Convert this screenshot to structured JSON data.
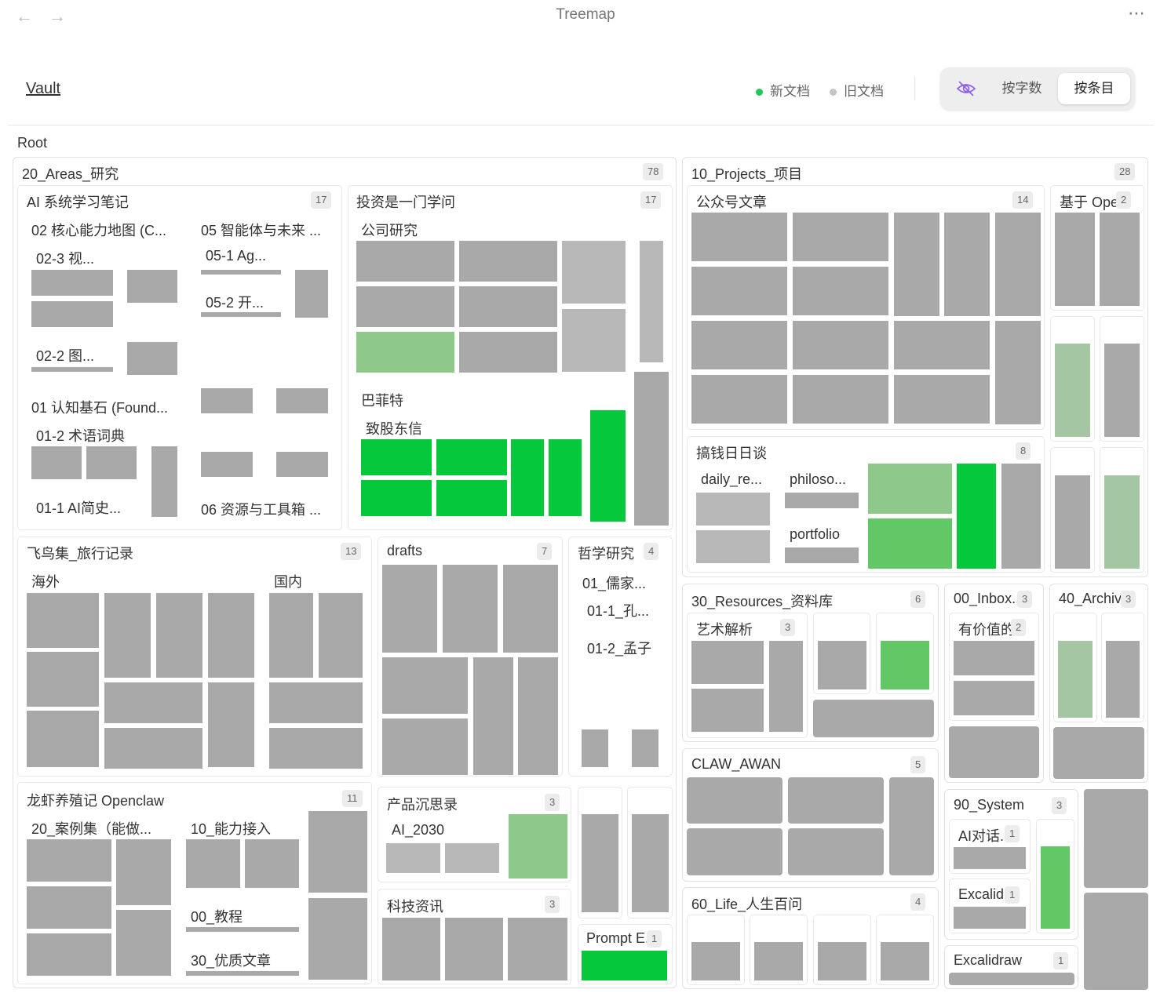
{
  "header": {
    "title": "Treemap",
    "back_icon": "arrow-left-icon",
    "forward_icon": "arrow-right-icon",
    "more_icon": "ellipsis-icon"
  },
  "toolbar": {
    "vault": "Vault",
    "legend_new": "新文档",
    "legend_old": "旧文档",
    "legend_new_color": "#22c55e",
    "legend_old_color": "#c4c4c4",
    "hide_icon": "eye-off-icon",
    "by_words": "按字数",
    "by_items": "按条目",
    "active_mode": "按条目"
  },
  "colors": {
    "old_doc": "#a9a9a9",
    "new_doc": "#05c93a",
    "recent_doc": "#62c765",
    "aging_doc": "#8fc88b"
  },
  "root_label": "Root",
  "groups": {
    "areas": {
      "name": "20_Areas_研究",
      "count": "78"
    },
    "ai": {
      "name": "AI 系统学习笔记",
      "count": "17",
      "s1": "02 核心能力地图 (C...",
      "s2": "02-3 视...",
      "s3": "02-2 图...",
      "s4": "05 智能体与未来 ...",
      "s5": "05-1 Ag...",
      "s6": "05-2 开...",
      "s7": "01 认知基石 (Found...",
      "s8": "01-2 术语词典",
      "s9": "01-1 AI简史...",
      "s10": "06 资源与工具箱 ..."
    },
    "invest": {
      "name": "投资是一门学问",
      "count": "17",
      "s1": "公司研究",
      "s2": "巴菲特",
      "s3": "致股东信"
    },
    "travel": {
      "name": "飞鸟集_旅行记录",
      "count": "13",
      "s1": "海外",
      "s2": "国内"
    },
    "drafts": {
      "name": "drafts",
      "count": "7"
    },
    "philo": {
      "name": "哲学研究",
      "count": "4",
      "s1": "01_儒家...",
      "s2": "01-1_孔...",
      "s3": "01-2_孟子"
    },
    "lobster": {
      "name": "龙虾养殖记 Openclaw",
      "count": "11",
      "s1": "20_案例集（能做...",
      "s2": "10_能力接入",
      "s3": "00_教程",
      "s4": "30_优质文章"
    },
    "product": {
      "name": "产品沉思录",
      "count": "3",
      "s1": "AI_2030"
    },
    "tech": {
      "name": "科技资讯",
      "count": "3"
    },
    "prompt": {
      "name": "Prompt E...",
      "count": "1"
    },
    "projects": {
      "name": "10_Projects_项目",
      "count": "28"
    },
    "wechat": {
      "name": "公众号文章",
      "count": "14"
    },
    "openbase": {
      "name": "基于 Ope...",
      "count": "2"
    },
    "money": {
      "name": "搞钱日日谈",
      "count": "8",
      "s1": "daily_re...",
      "s2": "philoso...",
      "s3": "portfolio"
    },
    "resources": {
      "name": "30_Resources_资料库",
      "count": "6"
    },
    "art": {
      "name": "艺术解析",
      "count": "3"
    },
    "inbox": {
      "name": "00_Inbox...",
      "count": "3"
    },
    "valuable": {
      "name": "有价值的...",
      "count": "2"
    },
    "archive": {
      "name": "40_Archiv...",
      "count": "3"
    },
    "claw": {
      "name": "CLAW_AWAN",
      "count": "5"
    },
    "life": {
      "name": "60_Life_人生百问",
      "count": "4"
    },
    "system": {
      "name": "90_System",
      "count": "3"
    },
    "aichat": {
      "name": "AI对话...",
      "count": "1"
    },
    "excal1": {
      "name": "Excalid...",
      "count": "1"
    },
    "excal2": {
      "name": "Excalidraw",
      "count": "1"
    }
  }
}
